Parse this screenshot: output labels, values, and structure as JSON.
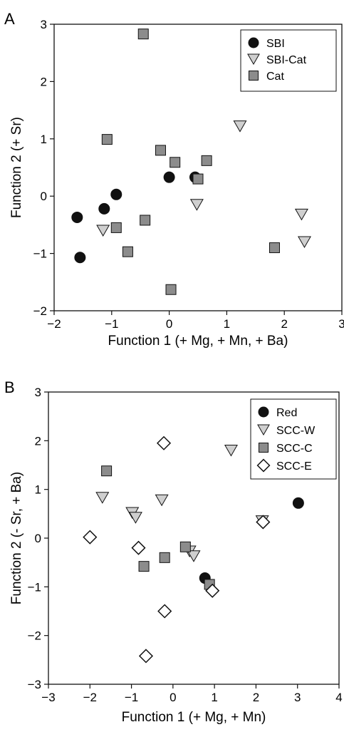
{
  "chart_data": [
    {
      "panel": "A",
      "type": "scatter",
      "xlabel": "Function 1 (+ Mg, + Mn, + Ba)",
      "ylabel": "Function 2 (+ Sr)",
      "xlim": [
        -2,
        3
      ],
      "ylim": [
        -2,
        3
      ],
      "xticks": [
        -2,
        -1,
        0,
        1,
        2,
        3
      ],
      "yticks": [
        -2,
        -1,
        0,
        1,
        2,
        3
      ],
      "grid": false,
      "legend_position": "top-right",
      "series": [
        {
          "name": "SBI",
          "marker": "circle",
          "color": "#111111",
          "points": [
            [
              -1.6,
              -0.37
            ],
            [
              -1.55,
              -1.07
            ],
            [
              -1.13,
              -0.22
            ],
            [
              -0.92,
              0.03
            ],
            [
              0.0,
              0.33
            ],
            [
              0.45,
              0.33
            ]
          ]
        },
        {
          "name": "SBI-Cat",
          "marker": "triangle-down",
          "color": "#cfcfcf",
          "points": [
            [
              -1.15,
              -0.6
            ],
            [
              0.48,
              -0.15
            ],
            [
              1.23,
              1.22
            ],
            [
              2.3,
              -0.32
            ],
            [
              2.35,
              -0.8
            ]
          ]
        },
        {
          "name": "Cat",
          "marker": "square",
          "color": "#8c8c8c",
          "points": [
            [
              -0.45,
              2.83
            ],
            [
              -1.08,
              0.99
            ],
            [
              -0.92,
              -0.55
            ],
            [
              -0.72,
              -0.97
            ],
            [
              -0.42,
              -0.42
            ],
            [
              -0.15,
              0.8
            ],
            [
              0.1,
              0.59
            ],
            [
              0.5,
              0.3
            ],
            [
              0.65,
              0.62
            ],
            [
              0.03,
              -1.63
            ],
            [
              1.83,
              -0.9
            ]
          ]
        }
      ]
    },
    {
      "panel": "B",
      "type": "scatter",
      "xlabel": "Function 1 (+ Mg, + Mn)",
      "ylabel": "Function 2 (- Sr, + Ba)",
      "xlim": [
        -3,
        4
      ],
      "ylim": [
        -3,
        3
      ],
      "xticks": [
        -3,
        -2,
        -1,
        0,
        1,
        2,
        3,
        4
      ],
      "yticks": [
        -3,
        -2,
        -1,
        0,
        1,
        2,
        3
      ],
      "grid": false,
      "legend_position": "top-right",
      "series": [
        {
          "name": "Red",
          "marker": "circle",
          "color": "#111111",
          "points": [
            [
              3.02,
              0.72
            ],
            [
              0.77,
              -0.82
            ]
          ]
        },
        {
          "name": "SCC-W",
          "marker": "triangle-down",
          "color": "#cfcfcf",
          "points": [
            [
              -1.7,
              0.83
            ],
            [
              -0.98,
              0.52
            ],
            [
              -0.9,
              0.42
            ],
            [
              -0.27,
              0.78
            ],
            [
              1.4,
              1.8
            ],
            [
              0.4,
              -0.27
            ],
            [
              0.5,
              -0.37
            ],
            [
              2.15,
              0.35
            ]
          ]
        },
        {
          "name": "SCC-C",
          "marker": "square",
          "color": "#8c8c8c",
          "points": [
            [
              -1.6,
              1.38
            ],
            [
              -0.7,
              -0.58
            ],
            [
              -0.2,
              -0.4
            ],
            [
              0.3,
              -0.18
            ],
            [
              0.88,
              -0.95
            ]
          ]
        },
        {
          "name": "SCC-E",
          "marker": "diamond",
          "color": "#ffffff",
          "points": [
            [
              -0.22,
              1.95
            ],
            [
              -2.0,
              0.02
            ],
            [
              -0.83,
              -0.2
            ],
            [
              2.17,
              0.33
            ],
            [
              0.95,
              -1.08
            ],
            [
              -0.2,
              -1.5
            ],
            [
              -0.65,
              -2.42
            ]
          ]
        }
      ]
    }
  ],
  "panels": {
    "A": {
      "label": "A"
    },
    "B": {
      "label": "B"
    }
  }
}
